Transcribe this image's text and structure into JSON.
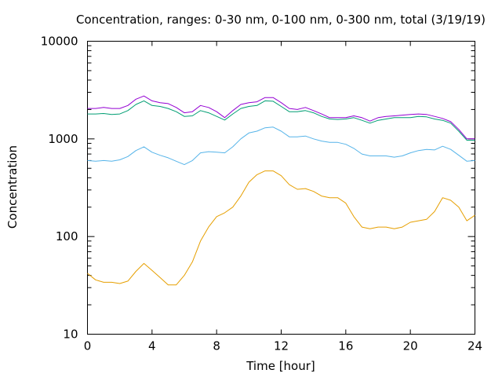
{
  "chart_data": {
    "type": "line",
    "title": "Concentration, ranges: 0-30 nm, 0-100 nm, 0-300 nm, total (3/19/19)",
    "xlabel": "Time [hour]",
    "ylabel": "Concentration",
    "xlim": [
      0,
      24
    ],
    "ylim": [
      10,
      10000
    ],
    "yscale": "log",
    "grid": false,
    "legend": "none",
    "x_ticks": [
      0,
      4,
      8,
      12,
      16,
      20,
      24
    ],
    "x_tick_labels": [
      "0",
      "4",
      "8",
      "12",
      "16",
      "20",
      "24"
    ],
    "y_ticks": [
      10,
      100,
      1000,
      10000
    ],
    "y_tick_labels": [
      "10",
      "100",
      "1000",
      "10000"
    ],
    "series": [
      {
        "color": "#e69f00",
        "x": [
          0,
          0.5,
          1,
          1.5,
          2,
          2.5,
          3,
          3.5,
          4,
          4.5,
          5,
          5.5,
          6,
          6.5,
          7,
          7.5,
          8,
          8.5,
          9,
          9.5,
          10,
          10.5,
          11,
          11.5,
          12,
          12.5,
          13,
          13.5,
          14,
          14.5,
          15,
          15.5,
          16,
          16.5,
          17,
          17.5,
          18,
          18.5,
          19,
          19.5,
          20,
          20.5,
          21,
          21.5,
          22,
          22.5,
          23,
          23.5,
          24
        ],
        "values": [
          42,
          36,
          34,
          34,
          33,
          35,
          44,
          53,
          45,
          38,
          32,
          32,
          40,
          55,
          90,
          125,
          160,
          175,
          200,
          260,
          360,
          430,
          470,
          470,
          420,
          340,
          305,
          310,
          290,
          260,
          250,
          250,
          220,
          160,
          125,
          120,
          125,
          125,
          120,
          125,
          140,
          145,
          150,
          180,
          250,
          235,
          200,
          145,
          165
        ]
      },
      {
        "color": "#56b4e9",
        "x": [
          0,
          0.5,
          1,
          1.5,
          2,
          2.5,
          3,
          3.5,
          4,
          4.5,
          5,
          5.5,
          6,
          6.5,
          7,
          7.5,
          8,
          8.5,
          9,
          9.5,
          10,
          10.5,
          11,
          11.5,
          12,
          12.5,
          13,
          13.5,
          14,
          14.5,
          15,
          15.5,
          16,
          16.5,
          17,
          17.5,
          18,
          18.5,
          19,
          19.5,
          20,
          20.5,
          21,
          21.5,
          22,
          22.5,
          23,
          23.5,
          24
        ],
        "values": [
          600,
          590,
          600,
          590,
          610,
          660,
          760,
          830,
          730,
          680,
          640,
          590,
          545,
          600,
          720,
          740,
          730,
          720,
          830,
          1000,
          1150,
          1200,
          1300,
          1320,
          1200,
          1050,
          1050,
          1070,
          1000,
          950,
          920,
          920,
          880,
          800,
          700,
          670,
          670,
          670,
          650,
          670,
          720,
          760,
          780,
          770,
          840,
          780,
          680,
          590,
          600
        ]
      },
      {
        "color": "#009e73",
        "x": [
          0,
          0.5,
          1,
          1.5,
          2,
          2.5,
          3,
          3.5,
          4,
          4.5,
          5,
          5.5,
          6,
          6.5,
          7,
          7.5,
          8,
          8.5,
          9,
          9.5,
          10,
          10.5,
          11,
          11.5,
          12,
          12.5,
          13,
          13.5,
          14,
          14.5,
          15,
          15.5,
          16,
          16.5,
          17,
          17.5,
          18,
          18.5,
          19,
          19.5,
          20,
          20.5,
          21,
          21.5,
          22,
          22.5,
          23,
          23.5,
          24
        ],
        "values": [
          1800,
          1800,
          1820,
          1780,
          1800,
          1950,
          2250,
          2450,
          2200,
          2150,
          2050,
          1900,
          1700,
          1720,
          1950,
          1850,
          1700,
          1560,
          1800,
          2050,
          2150,
          2200,
          2450,
          2430,
          2150,
          1900,
          1900,
          1950,
          1850,
          1700,
          1600,
          1580,
          1600,
          1650,
          1550,
          1450,
          1550,
          1600,
          1650,
          1650,
          1650,
          1700,
          1680,
          1600,
          1550,
          1450,
          1200,
          970,
          970
        ]
      },
      {
        "color": "#9400d3",
        "x": [
          0,
          0.5,
          1,
          1.5,
          2,
          2.5,
          3,
          3.5,
          4,
          4.5,
          5,
          5.5,
          6,
          6.5,
          7,
          7.5,
          8,
          8.5,
          9,
          9.5,
          10,
          10.5,
          11,
          11.5,
          12,
          12.5,
          13,
          13.5,
          14,
          14.5,
          15,
          15.5,
          16,
          16.5,
          17,
          17.5,
          18,
          18.5,
          19,
          19.5,
          20,
          20.5,
          21,
          21.5,
          22,
          22.5,
          23,
          23.5,
          24
        ],
        "values": [
          2050,
          2050,
          2100,
          2050,
          2050,
          2200,
          2550,
          2750,
          2450,
          2350,
          2300,
          2100,
          1850,
          1900,
          2200,
          2100,
          1900,
          1650,
          1950,
          2250,
          2350,
          2400,
          2650,
          2650,
          2350,
          2050,
          2000,
          2100,
          1950,
          1800,
          1650,
          1650,
          1650,
          1720,
          1650,
          1520,
          1650,
          1700,
          1720,
          1750,
          1780,
          1800,
          1780,
          1700,
          1620,
          1500,
          1250,
          1000,
          1000
        ]
      }
    ]
  }
}
